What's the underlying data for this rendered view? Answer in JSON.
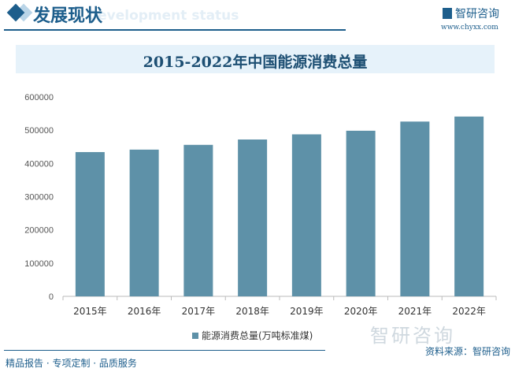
{
  "header": {
    "title": "发展现状",
    "subtitle": "Development status",
    "logo": "智研咨询",
    "url": "www.chyxx.com"
  },
  "watermark": "智研咨询",
  "footer": {
    "left": "精品报告 · 专项定制 · 品质服务",
    "source": "资料来源：智研咨询"
  },
  "colors": {
    "bar": "#5e91a8",
    "accent": "#1d5e8c"
  },
  "chart_data": {
    "type": "bar",
    "title": "2015-2022年中国能源消费总量",
    "categories": [
      "2015年",
      "2016年",
      "2017年",
      "2018年",
      "2019年",
      "2020年",
      "2021年",
      "2022年"
    ],
    "series": [
      {
        "name": "能源消费总量(万吨标准煤)",
        "values": [
          434113,
          441492,
          455827,
          471925,
          487488,
          498314,
          525896,
          541000
        ]
      }
    ],
    "yticks": [
      "0",
      "100000",
      "200000",
      "300000",
      "400000",
      "500000",
      "600000"
    ],
    "ylim": [
      0,
      600000
    ],
    "grid": false,
    "legend": "bottom"
  }
}
